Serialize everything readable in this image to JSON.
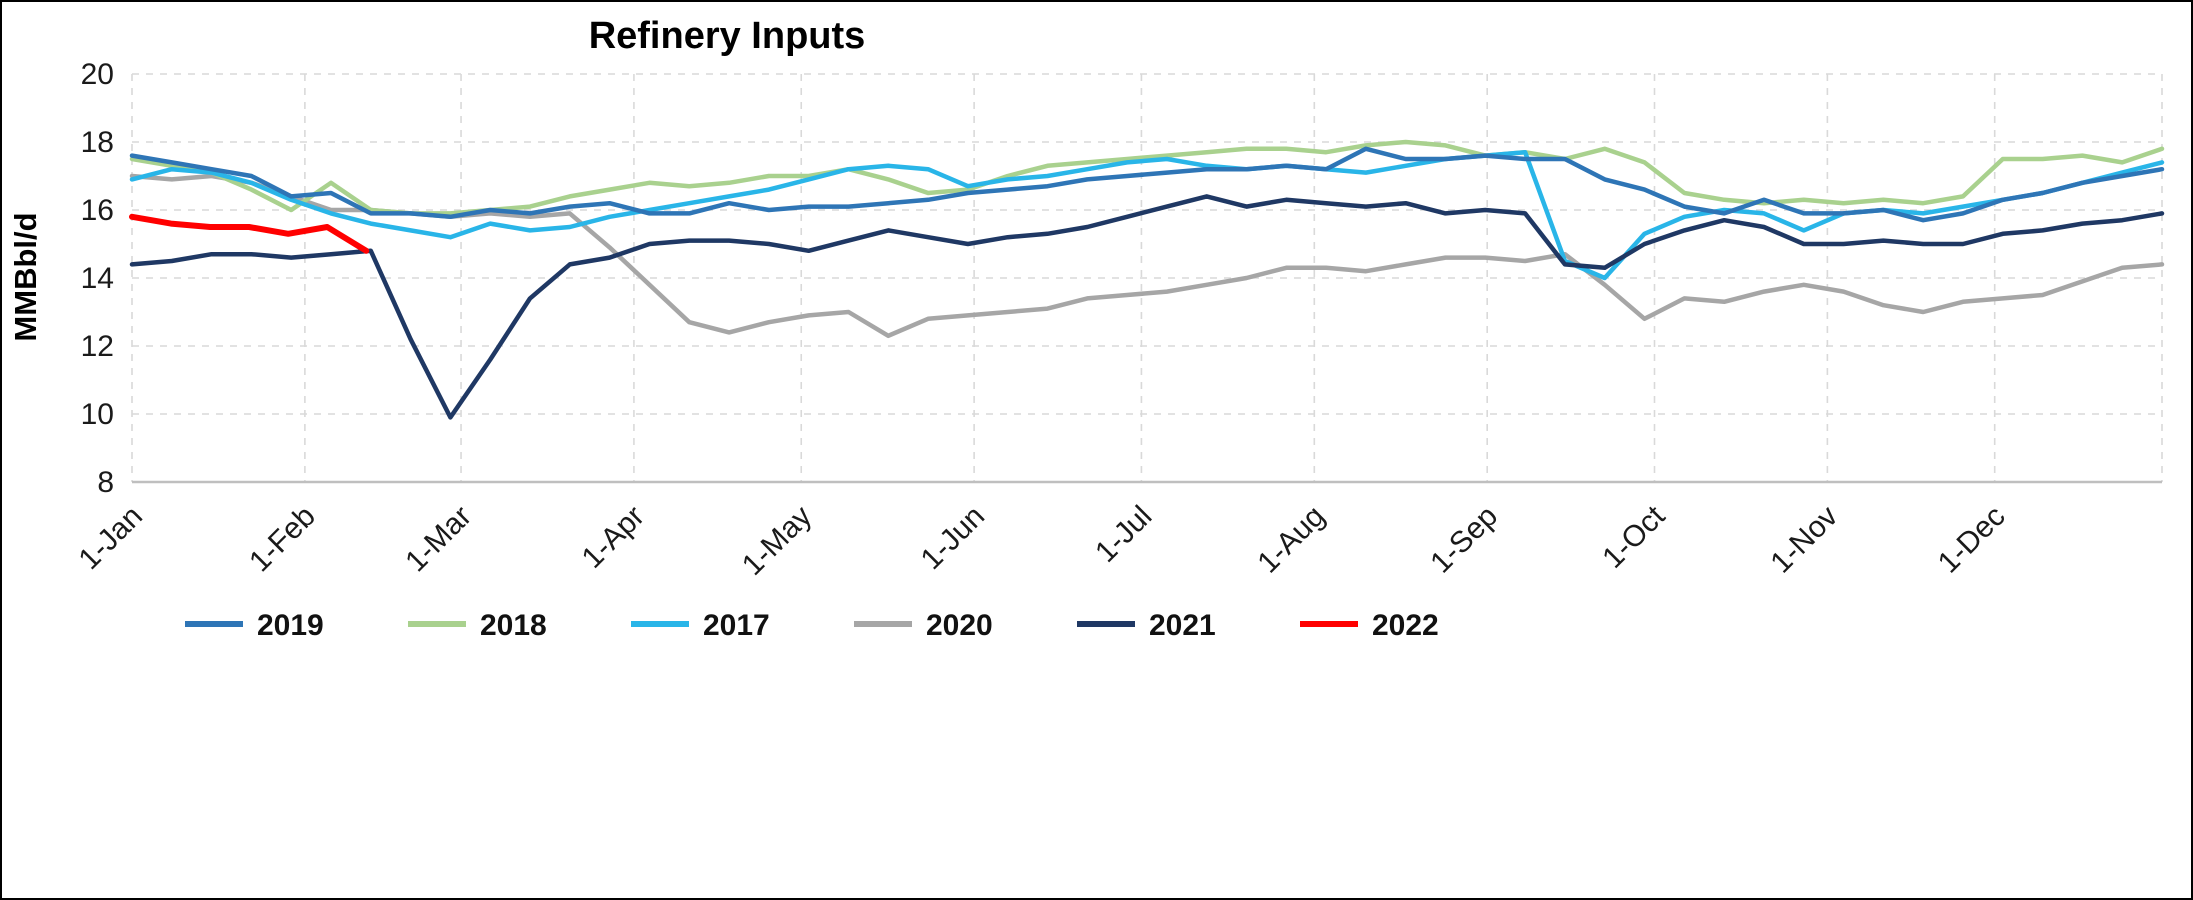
{
  "title": "Refinery Inputs",
  "y_axis": {
    "label": "MMBbl/d",
    "ticks": [
      20,
      18,
      16,
      14,
      12,
      10,
      8
    ],
    "min": 8,
    "max": 20
  },
  "x_axis": {
    "labels": [
      "1-Jan",
      "1-Feb",
      "1-Mar",
      "1-Apr",
      "1-May",
      "1-Jun",
      "1-Jul",
      "1-Aug",
      "1-Sep",
      "1-Oct",
      "1-Nov",
      "1-Dec"
    ]
  },
  "colors": {
    "grid": "#d9d9d9",
    "axis_line": "#bfbfbf",
    "series_2019": "#2E75B6",
    "series_2018": "#A9D18E",
    "series_2017": "#29B5E8",
    "series_2020": "#A6A6A6",
    "series_2021": "#1F3864",
    "series_2022": "#FF0000"
  },
  "legend": {
    "items": [
      {
        "label": "2019",
        "color": "#2E75B6"
      },
      {
        "label": "2018",
        "color": "#A9D18E"
      },
      {
        "label": "2017",
        "color": "#29B5E8"
      },
      {
        "label": "2020",
        "color": "#A6A6A6"
      },
      {
        "label": "2021",
        "color": "#1F3864"
      },
      {
        "label": "2022",
        "color": "#FF0000"
      }
    ]
  },
  "chart_data": {
    "type": "line",
    "title": "Refinery Inputs",
    "xlabel": "",
    "ylabel": "MMBbl/d",
    "ylim": [
      8,
      20
    ],
    "grid": true,
    "legend_position": "bottom",
    "x_unit": "weekly observations spanning 1-Jan through 31-Dec",
    "x_tick_labels": [
      "1-Jan",
      "1-Feb",
      "1-Mar",
      "1-Apr",
      "1-May",
      "1-Jun",
      "1-Jul",
      "1-Aug",
      "1-Sep",
      "1-Oct",
      "1-Nov",
      "1-Dec"
    ],
    "series": [
      {
        "name": "2020",
        "color": "#A6A6A6",
        "values": [
          17.0,
          16.9,
          17.0,
          16.8,
          16.4,
          16.0,
          16.0,
          15.9,
          15.8,
          15.9,
          15.8,
          15.9,
          14.9,
          13.8,
          12.7,
          12.4,
          12.7,
          12.9,
          13.0,
          12.3,
          12.8,
          12.9,
          13.0,
          13.1,
          13.4,
          13.5,
          13.6,
          13.8,
          14.0,
          14.3,
          14.3,
          14.2,
          14.4,
          14.6,
          14.6,
          14.5,
          14.7,
          13.8,
          12.8,
          13.4,
          13.3,
          13.6,
          13.8,
          13.6,
          13.2,
          13.0,
          13.3,
          13.4,
          13.5,
          13.9,
          14.3,
          14.4
        ]
      },
      {
        "name": "2018",
        "color": "#A9D18E",
        "values": [
          17.5,
          17.3,
          17.1,
          16.6,
          16.0,
          16.8,
          16.0,
          15.9,
          15.9,
          16.0,
          16.1,
          16.4,
          16.6,
          16.8,
          16.7,
          16.8,
          17.0,
          17.0,
          17.2,
          16.9,
          16.5,
          16.6,
          17.0,
          17.3,
          17.4,
          17.5,
          17.6,
          17.7,
          17.8,
          17.8,
          17.7,
          17.9,
          18.0,
          17.9,
          17.6,
          17.7,
          17.5,
          17.8,
          17.4,
          16.5,
          16.3,
          16.2,
          16.3,
          16.2,
          16.3,
          16.2,
          16.4,
          17.5,
          17.5,
          17.6,
          17.4,
          17.8
        ]
      },
      {
        "name": "2017",
        "color": "#29B5E8",
        "values": [
          16.9,
          17.2,
          17.1,
          16.8,
          16.3,
          15.9,
          15.6,
          15.4,
          15.2,
          15.6,
          15.4,
          15.5,
          15.8,
          16.0,
          16.2,
          16.4,
          16.6,
          16.9,
          17.2,
          17.3,
          17.2,
          16.7,
          16.9,
          17.0,
          17.2,
          17.4,
          17.5,
          17.3,
          17.2,
          17.3,
          17.2,
          17.1,
          17.3,
          17.5,
          17.6,
          17.7,
          14.5,
          14.0,
          15.3,
          15.8,
          16.0,
          15.9,
          15.4,
          15.9,
          16.0,
          15.9,
          16.1,
          16.3,
          16.5,
          16.8,
          17.1,
          17.4
        ]
      },
      {
        "name": "2019",
        "color": "#2E75B6",
        "values": [
          17.6,
          17.4,
          17.2,
          17.0,
          16.4,
          16.5,
          15.9,
          15.9,
          15.8,
          16.0,
          15.9,
          16.1,
          16.2,
          15.9,
          15.9,
          16.2,
          16.0,
          16.1,
          16.1,
          16.2,
          16.3,
          16.5,
          16.6,
          16.7,
          16.9,
          17.0,
          17.1,
          17.2,
          17.2,
          17.3,
          17.2,
          17.8,
          17.5,
          17.5,
          17.6,
          17.5,
          17.5,
          16.9,
          16.6,
          16.1,
          15.9,
          16.3,
          15.9,
          15.9,
          16.0,
          15.7,
          15.9,
          16.3,
          16.5,
          16.8,
          17.0,
          17.2
        ]
      },
      {
        "name": "2021",
        "color": "#1F3864",
        "values": [
          14.4,
          14.5,
          14.7,
          14.7,
          14.6,
          14.7,
          14.8,
          12.2,
          9.9,
          11.6,
          13.4,
          14.4,
          14.6,
          15.0,
          15.1,
          15.1,
          15.0,
          14.8,
          15.1,
          15.4,
          15.2,
          15.0,
          15.2,
          15.3,
          15.5,
          15.8,
          16.1,
          16.4,
          16.1,
          16.3,
          16.2,
          16.1,
          16.2,
          15.9,
          16.0,
          15.9,
          14.4,
          14.3,
          15.0,
          15.4,
          15.7,
          15.5,
          15.0,
          15.0,
          15.1,
          15.0,
          15.0,
          15.3,
          15.4,
          15.6,
          15.7,
          15.9
        ]
      },
      {
        "name": "2022",
        "color": "#FF0000",
        "values": [
          15.8,
          15.6,
          15.5,
          15.5,
          15.3,
          15.5,
          14.8
        ]
      }
    ]
  }
}
